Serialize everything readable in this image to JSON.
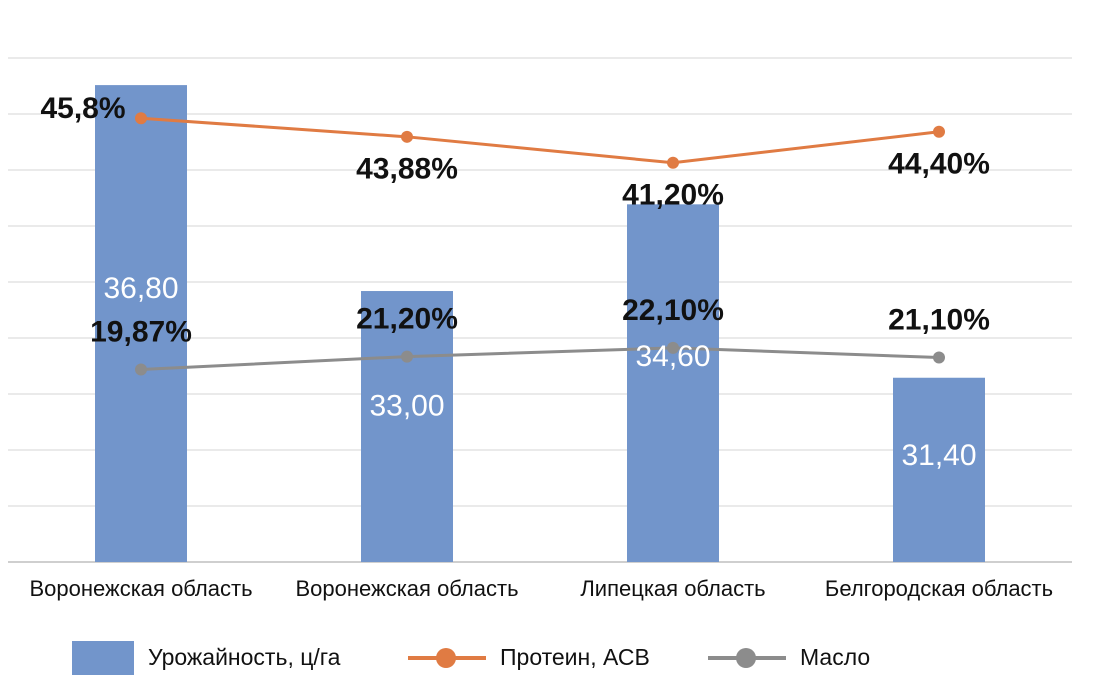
{
  "chart_data": {
    "type": "bar",
    "categories": [
      "Воронежская область",
      "Воронежская область",
      "Липецкая область",
      "Белгородская область"
    ],
    "series": [
      {
        "name": "Урожайность, ц/га",
        "kind": "bar",
        "values": [
          36.8,
          33.0,
          34.6,
          31.4
        ],
        "labels": [
          "36,80",
          "33,00",
          "34,60",
          "31,40"
        ],
        "color": "#7295CB"
      },
      {
        "name": "Протеин, АСВ",
        "kind": "line",
        "values": [
          45.8,
          43.88,
          41.2,
          44.4
        ],
        "labels": [
          "45,8%",
          "43,88%",
          "41,20%",
          "44,40%"
        ],
        "color": "#E07B43"
      },
      {
        "name": "Масло",
        "kind": "line",
        "values": [
          19.87,
          21.2,
          22.1,
          21.1
        ],
        "labels": [
          "19,87%",
          "21,20%",
          "22,10%",
          "21,10%"
        ],
        "color": "#8C8C8C"
      }
    ],
    "grid": true,
    "legend": "bottom"
  }
}
